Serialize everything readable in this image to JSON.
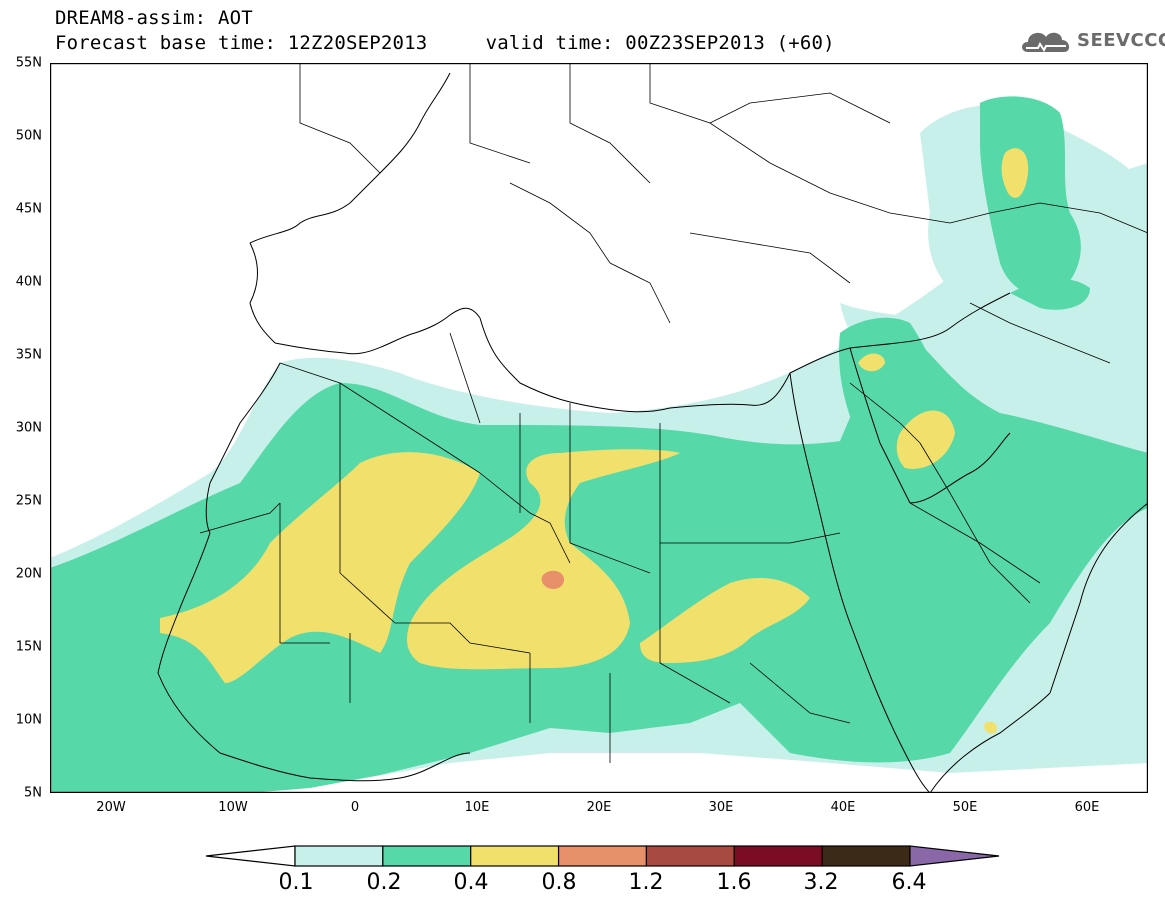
{
  "header": {
    "line1": "DREAM8-assim: AOT",
    "line2": "Forecast base time: 12Z20SEP2013     valid time: 00Z23SEP2013 (+60)"
  },
  "logo": {
    "icon": "cloud-icon",
    "text": "SEEVCCC"
  },
  "map": {
    "projection": "lat-lon",
    "lon_range": [
      -25,
      65
    ],
    "lat_range": [
      5,
      55
    ],
    "y_ticks": [
      "55N",
      "50N",
      "45N",
      "40N",
      "35N",
      "30N",
      "25N",
      "20N",
      "15N",
      "10N",
      "5N"
    ],
    "x_ticks": [
      "20W",
      "10W",
      "0",
      "10E",
      "20E",
      "30E",
      "40E",
      "50E",
      "60E"
    ]
  },
  "colorbar": {
    "labels": [
      "0.1",
      "0.2",
      "0.4",
      "0.8",
      "1.2",
      "1.6",
      "3.2",
      "6.4"
    ],
    "colors": [
      "#c8f0ea",
      "#56d8a8",
      "#f2e06c",
      "#e8906a",
      "#a84a40",
      "#7a0c24",
      "#3c2a18",
      "#8a68a8"
    ],
    "below_color": "#ffffff"
  }
}
